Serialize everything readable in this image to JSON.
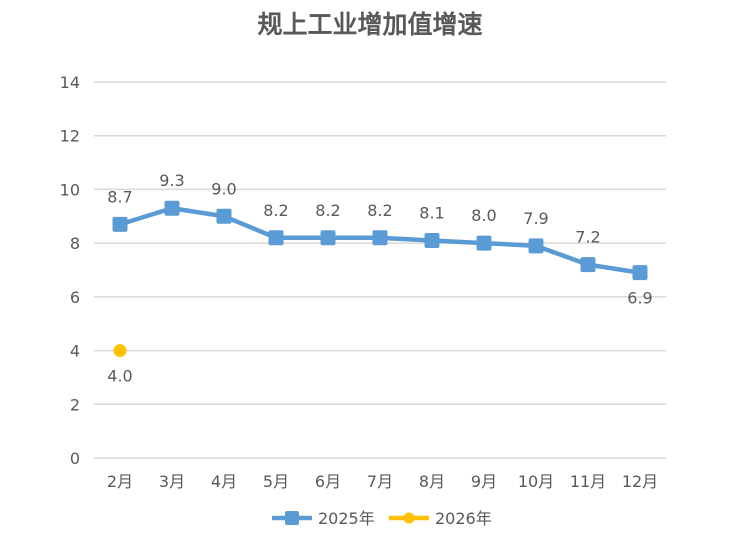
{
  "chart_data": {
    "type": "line",
    "title": "规上工业增加值增速",
    "xlabel": "",
    "ylabel": "",
    "categories": [
      "2月",
      "3月",
      "4月",
      "5月",
      "6月",
      "7月",
      "8月",
      "9月",
      "10月",
      "11月",
      "12月"
    ],
    "ylim": [
      0,
      14
    ],
    "yticks": [
      "0",
      "2",
      "4",
      "6",
      "8",
      "10",
      "12",
      "14"
    ],
    "grid": true,
    "legend_position": "bottom",
    "series": [
      {
        "name": "2025年",
        "color": "#5B9BD5",
        "marker": "square",
        "values": [
          8.7,
          9.3,
          9.0,
          8.2,
          8.2,
          8.2,
          8.1,
          8.0,
          7.9,
          7.2,
          6.9
        ],
        "labels": [
          "8.7",
          "9.3",
          "9.0",
          "8.2",
          "8.2",
          "8.2",
          "8.1",
          "8.0",
          "7.9",
          "7.2",
          "6.9"
        ]
      },
      {
        "name": "2026年",
        "color": "#FFC000",
        "marker": "circle",
        "values": [
          4.0,
          null,
          null,
          null,
          null,
          null,
          null,
          null,
          null,
          null,
          null
        ],
        "labels": [
          "4.0"
        ]
      }
    ]
  }
}
